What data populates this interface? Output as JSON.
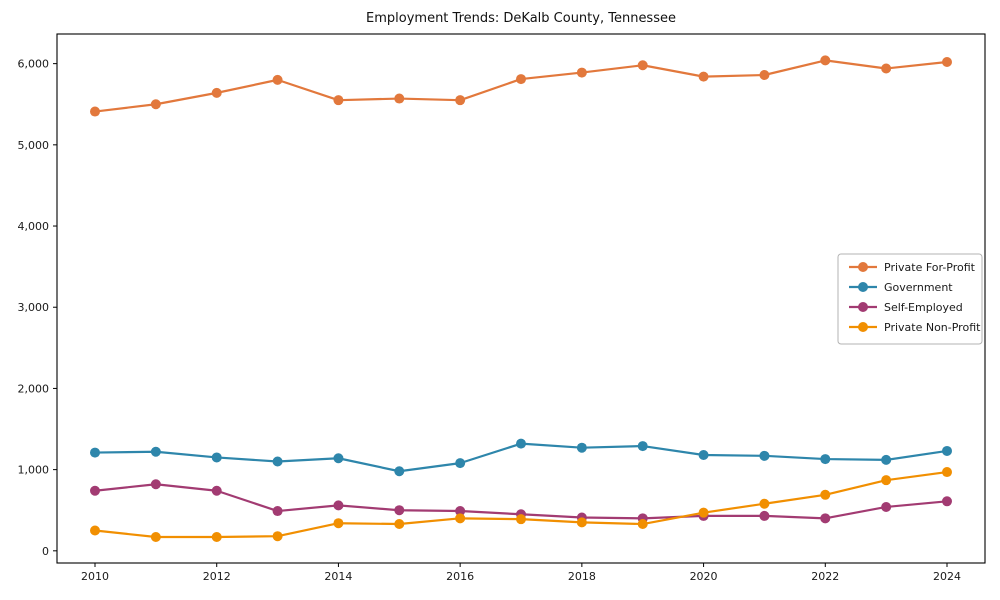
{
  "window": {
    "background": "#ffffff"
  },
  "chart_data": {
    "type": "line",
    "title": "Employment Trends: DeKalb County, Tennessee",
    "xlabel": "",
    "ylabel": "",
    "x": [
      2010,
      2011,
      2012,
      2013,
      2014,
      2015,
      2016,
      2017,
      2018,
      2019,
      2020,
      2021,
      2022,
      2023,
      2024
    ],
    "series": [
      {
        "name": "Private For-Profit",
        "color": "#E2783C",
        "marker": "circle",
        "values": [
          5410,
          5500,
          5640,
          5800,
          5550,
          5570,
          5550,
          5810,
          5890,
          5980,
          5840,
          5860,
          6040,
          5940,
          6020
        ]
      },
      {
        "name": "Government",
        "color": "#2E86AB",
        "marker": "circle",
        "values": [
          1210,
          1220,
          1150,
          1100,
          1140,
          980,
          1080,
          1320,
          1270,
          1290,
          1180,
          1170,
          1130,
          1120,
          1230
        ]
      },
      {
        "name": "Self-Employed",
        "color": "#A23B72",
        "marker": "circle",
        "values": [
          740,
          820,
          740,
          490,
          560,
          500,
          490,
          450,
          410,
          400,
          430,
          430,
          400,
          540,
          610
        ]
      },
      {
        "name": "Private Non-Profit",
        "color": "#F18F01",
        "marker": "circle",
        "values": [
          250,
          170,
          170,
          180,
          340,
          330,
          400,
          390,
          350,
          330,
          470,
          580,
          690,
          870,
          970
        ]
      }
    ],
    "xticks": [
      {
        "value": 2010,
        "label": "2010"
      },
      {
        "value": 2012,
        "label": "2012"
      },
      {
        "value": 2014,
        "label": "2014"
      },
      {
        "value": 2016,
        "label": "2016"
      },
      {
        "value": 2018,
        "label": "2018"
      },
      {
        "value": 2020,
        "label": "2020"
      },
      {
        "value": 2022,
        "label": "2022"
      },
      {
        "value": 2024,
        "label": "2024"
      }
    ],
    "yticks": [
      {
        "value": 0,
        "label": "0"
      },
      {
        "value": 1000,
        "label": "1,000"
      },
      {
        "value": 2000,
        "label": "2,000"
      },
      {
        "value": 3000,
        "label": "3,000"
      },
      {
        "value": 4000,
        "label": "4,000"
      },
      {
        "value": 5000,
        "label": "5,000"
      },
      {
        "value": 6000,
        "label": "6,000"
      }
    ],
    "ylim": [
      -150,
      6365
    ],
    "grid": false,
    "legend": {
      "position": "middle-right",
      "entries": [
        "Private For-Profit",
        "Government",
        "Self-Employed",
        "Private Non-Profit"
      ],
      "border_color": "#b3b3b3",
      "background": "#ffffff"
    },
    "axis_color": "#000000",
    "text_color": "#1a1a1a"
  }
}
